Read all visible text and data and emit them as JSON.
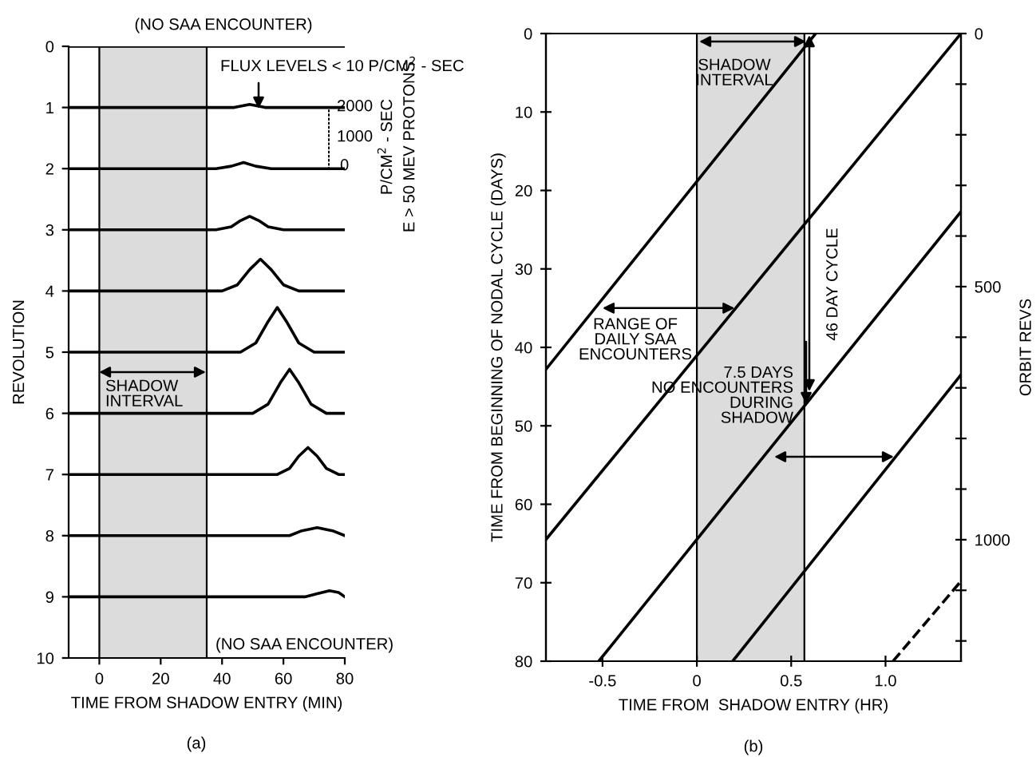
{
  "chart_data": [
    {
      "type": "line",
      "xlabel": "TIME FROM SHADOW ENTRY (MIN)",
      "ylabel": "REVOLUTION",
      "xlim": [
        -10,
        80
      ],
      "ylim": [
        10,
        0
      ],
      "xticks": [
        0,
        20,
        40,
        60,
        80
      ],
      "yticks": [
        0,
        1,
        2,
        3,
        4,
        5,
        6,
        7,
        8,
        9,
        10
      ],
      "grid": false,
      "marker": "none",
      "line_style": "solid",
      "series": [
        {
          "color": "#000000",
          "x": [
            -10,
            80
          ],
          "values": [
            0,
            0
          ]
        },
        {
          "color": "#000000",
          "x": [
            -10,
            44,
            49,
            54,
            80
          ],
          "values": [
            1,
            1,
            0.95,
            1,
            1
          ]
        },
        {
          "color": "#000000",
          "x": [
            -10,
            38,
            43,
            47,
            51,
            56,
            80
          ],
          "values": [
            2,
            2,
            1.96,
            1.9,
            1.96,
            2,
            2
          ]
        },
        {
          "color": "#000000",
          "x": [
            -10,
            38,
            43,
            46,
            49,
            52,
            55,
            60,
            80
          ],
          "values": [
            3,
            3,
            2.95,
            2.85,
            2.78,
            2.85,
            2.95,
            3,
            3
          ]
        },
        {
          "color": "#000000",
          "x": [
            -10,
            40,
            45,
            49,
            52.5,
            56,
            60,
            65,
            80
          ],
          "values": [
            4,
            4,
            3.9,
            3.65,
            3.48,
            3.65,
            3.9,
            4,
            4
          ]
        },
        {
          "color": "#000000",
          "x": [
            -10,
            46,
            51,
            55,
            58,
            61,
            65,
            70,
            80
          ],
          "values": [
            5,
            5,
            4.85,
            4.5,
            4.27,
            4.5,
            4.85,
            5,
            5
          ]
        },
        {
          "color": "#000000",
          "x": [
            -10,
            50,
            55,
            59,
            62,
            65,
            69,
            74,
            80
          ],
          "values": [
            6,
            6,
            5.85,
            5.5,
            5.28,
            5.5,
            5.85,
            6,
            6
          ]
        },
        {
          "color": "#000000",
          "x": [
            -10,
            58,
            62,
            65,
            68,
            71,
            74,
            78,
            80
          ],
          "values": [
            7,
            7,
            6.9,
            6.7,
            6.56,
            6.7,
            6.9,
            7,
            7
          ]
        },
        {
          "color": "#000000",
          "x": [
            -10,
            62,
            66,
            71,
            76,
            80
          ],
          "values": [
            8,
            8,
            7.92,
            7.87,
            7.92,
            8
          ]
        },
        {
          "color": "#000000",
          "x": [
            -10,
            67,
            71,
            75,
            78,
            80
          ],
          "values": [
            9,
            9,
            8.95,
            8.9,
            8.93,
            9
          ]
        }
      ],
      "bands": [
        {
          "axis": "x",
          "from": 0,
          "to": 35,
          "label": "SHADOW\nINTERVAL",
          "color": "#dcdcdc"
        }
      ],
      "annotations": [
        "(NO SAA ENCOUNTER)",
        "FLUX LEVELS < 10 P/CM$^{2}$ - SEC",
        "(NO SAA ENCOUNTER)",
        "2000",
        "1000",
        "0",
        "P/CM$^{2}$ - SEC",
        "E > 50 MEV PROTONS",
        "(a)"
      ]
    },
    {
      "type": "line",
      "xlabel": "TIME FROM  SHADOW ENTRY (HR)",
      "ylabel": "TIME FROM BEGINNING OF NODAL CYCLE (DAYS)",
      "y2label": "ORBIT REVS",
      "xlim": [
        -0.8,
        1.4
      ],
      "ylim": [
        80,
        0
      ],
      "y2lim": [
        1240,
        0
      ],
      "xticks": [
        -0.5,
        0,
        {
          "value": 0.5,
          "label": "0.5"
        },
        {
          "value": 1.0,
          "label": "1.0"
        }
      ],
      "yticks": [
        0,
        10,
        20,
        30,
        40,
        50,
        60,
        70,
        80
      ],
      "y2ticks": [
        0,
        {
          "value": 100,
          "label": null
        },
        {
          "value": 200,
          "label": null
        },
        {
          "value": 300,
          "label": null
        },
        {
          "value": 400,
          "label": null
        },
        500,
        {
          "value": 600,
          "label": null
        },
        {
          "value": 700,
          "label": null
        },
        {
          "value": 800,
          "label": null
        },
        {
          "value": 900,
          "label": null
        },
        1000,
        {
          "value": 1100,
          "label": null
        },
        {
          "value": 1200,
          "label": null
        }
      ],
      "grid": false,
      "marker": "none",
      "line_style": "solid",
      "series": [
        {
          "color": "#000000",
          "x": [
            -0.8,
            0.63
          ],
          "values": [
            42.8,
            0
          ]
        },
        {
          "color": "#000000",
          "x": [
            -0.8,
            1.4
          ],
          "values": [
            64.5,
            0
          ]
        },
        {
          "color": "#000000",
          "x": [
            -0.52,
            1.4
          ],
          "values": [
            80,
            22.7
          ]
        },
        {
          "color": "#000000",
          "x": [
            0.19,
            1.4
          ],
          "values": [
            80,
            43.5
          ]
        },
        {
          "color": "#000000",
          "x": [
            1.04,
            1.4
          ],
          "values": [
            80,
            69.8
          ],
          "line_style": "dashed"
        }
      ],
      "bands": [
        {
          "axis": "x",
          "from": 0,
          "to": 0.57,
          "label": "SHADOW\nINTERVAL",
          "color": "#dcdcdc"
        }
      ],
      "annotations": [
        {
          "text": "RANGE OF\nDAILY SAA\nENCOUNTERS",
          "x": 0.2,
          "y": 35
        },
        "46 DAY CYCLE",
        "7.5 DAYS\nNO ENCOUNTERS\nDURING\nSHADOW",
        "(b)"
      ]
    }
  ]
}
